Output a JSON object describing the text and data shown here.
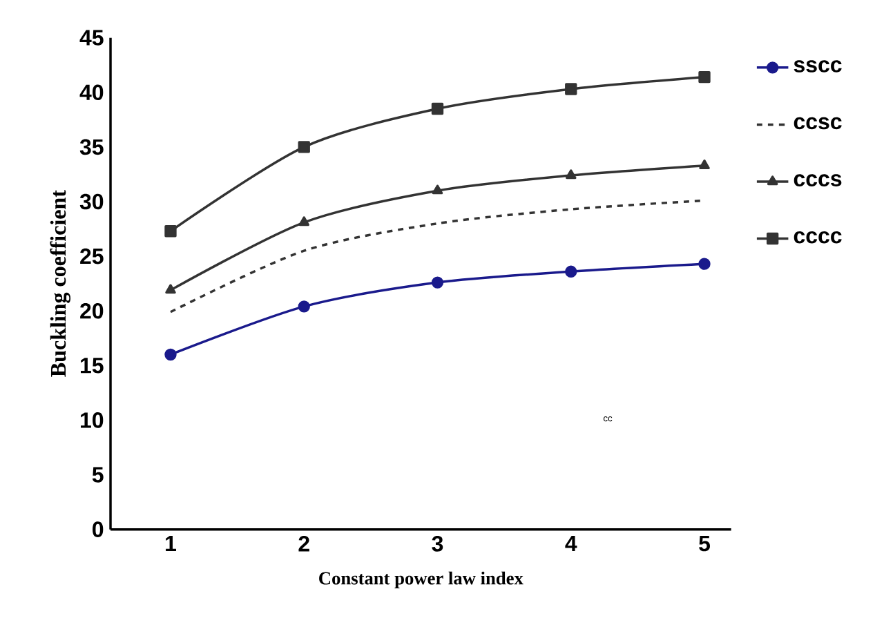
{
  "chart_data": {
    "type": "line",
    "xlabel": "Constant power law index",
    "ylabel": "Buckling coefficient",
    "categories": [
      "1",
      "2",
      "3",
      "4",
      "5"
    ],
    "series": [
      {
        "name": "sscc",
        "color": "#1a1a8c",
        "marker": "circle",
        "line_style": "solid",
        "values": [
          16.0,
          20.4,
          22.6,
          23.6,
          24.3
        ]
      },
      {
        "name": "ccsc",
        "color": "#333333",
        "marker": "none",
        "line_style": "dashed",
        "values": [
          19.9,
          25.5,
          28.0,
          29.3,
          30.1
        ]
      },
      {
        "name": "cccs",
        "color": "#333333",
        "marker": "triangle",
        "line_style": "solid",
        "values": [
          21.9,
          28.1,
          31.0,
          32.4,
          33.3
        ]
      },
      {
        "name": "cccc",
        "color": "#333333",
        "marker": "square",
        "line_style": "solid",
        "values": [
          27.3,
          35.0,
          38.5,
          40.3,
          41.4
        ]
      }
    ],
    "ylim": [
      0,
      45
    ],
    "yticks": [
      0,
      5,
      10,
      15,
      20,
      25,
      30,
      35,
      40,
      45
    ],
    "grid": false,
    "legend": "right",
    "annotations": [
      "cc"
    ]
  }
}
